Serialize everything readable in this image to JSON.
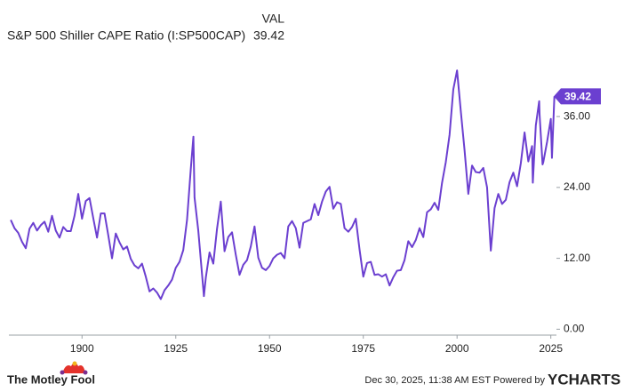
{
  "chart_data": {
    "type": "line",
    "header_label": "VAL",
    "series_name": "S&P 500 Shiller CAPE Ratio (I:SP500CAP)",
    "color": "#6b3fd0",
    "x": [
      1881,
      1882,
      1883,
      1884,
      1885,
      1886,
      1887,
      1888,
      1889,
      1890,
      1891,
      1892,
      1893,
      1894,
      1895,
      1896,
      1897,
      1898,
      1899,
      1900,
      1901,
      1902,
      1903,
      1904,
      1905,
      1906,
      1907,
      1908,
      1909,
      1910,
      1911,
      1912,
      1913,
      1914,
      1915,
      1916,
      1917,
      1918,
      1919,
      1920,
      1921,
      1922,
      1923,
      1924,
      1925,
      1926,
      1927,
      1928,
      1929,
      1929.7,
      1930,
      1931,
      1932,
      1932.5,
      1933,
      1934,
      1935,
      1936,
      1937,
      1938,
      1939,
      1940,
      1941,
      1942,
      1943,
      1944,
      1945,
      1946,
      1947,
      1948,
      1949,
      1950,
      1951,
      1952,
      1953,
      1954,
      1955,
      1956,
      1957,
      1958,
      1959,
      1960,
      1961,
      1962,
      1963,
      1964,
      1965,
      1966,
      1967,
      1968,
      1969,
      1970,
      1971,
      1972,
      1973,
      1974,
      1975,
      1976,
      1977,
      1978,
      1979,
      1980,
      1981,
      1982,
      1983,
      1984,
      1985,
      1986,
      1987,
      1988,
      1989,
      1990,
      1991,
      1992,
      1993,
      1994,
      1995,
      1996,
      1997,
      1998,
      1999,
      2000,
      2001,
      2002,
      2003,
      2004,
      2005,
      2006,
      2007,
      2008,
      2009,
      2010,
      2011,
      2012,
      2013,
      2014,
      2015,
      2016,
      2017,
      2018,
      2019,
      2020,
      2020.2,
      2021,
      2021.9,
      2022,
      2022.8,
      2023,
      2024,
      2025,
      2025.3,
      2025.95
    ],
    "values": [
      18.5,
      17.1,
      16.3,
      14.8,
      13.7,
      17.0,
      18.0,
      16.7,
      17.6,
      18.2,
      16.5,
      19.2,
      16.7,
      15.5,
      17.3,
      16.6,
      16.6,
      19.2,
      22.9,
      18.7,
      21.7,
      22.2,
      18.8,
      15.5,
      19.6,
      19.6,
      15.9,
      12.0,
      16.2,
      14.7,
      13.5,
      14.0,
      11.9,
      10.8,
      10.3,
      11.1,
      8.9,
      6.4,
      6.9,
      6.2,
      5.1,
      6.6,
      7.4,
      8.4,
      10.4,
      11.4,
      13.4,
      18.5,
      27.1,
      32.6,
      22.3,
      16.7,
      9.3,
      5.6,
      8.7,
      13.0,
      11.1,
      17.0,
      21.6,
      13.2,
      15.6,
      16.4,
      12.6,
      9.2,
      10.9,
      11.7,
      14.0,
      17.4,
      12.1,
      10.4,
      10.0,
      10.7,
      12.0,
      12.6,
      12.9,
      12.0,
      17.4,
      18.3,
      17.1,
      13.8,
      18.0,
      18.3,
      18.6,
      21.2,
      19.3,
      21.6,
      23.3,
      24.1,
      20.4,
      21.5,
      21.2,
      17.1,
      16.5,
      17.3,
      18.7,
      13.5,
      8.9,
      11.2,
      11.4,
      9.2,
      9.3,
      8.9,
      9.3,
      7.4,
      8.8,
      9.9,
      10.0,
      11.7,
      14.9,
      13.9,
      15.1,
      17.1,
      15.6,
      19.8,
      20.3,
      21.4,
      20.2,
      24.8,
      28.3,
      32.9,
      40.6,
      43.8,
      36.9,
      30.3,
      22.9,
      27.7,
      26.6,
      26.5,
      27.3,
      24.0,
      13.3,
      20.5,
      22.9,
      21.2,
      21.9,
      24.9,
      26.5,
      24.2,
      28.1,
      33.3,
      28.4,
      31.0,
      24.8,
      34.5,
      38.6,
      36.4,
      27.9,
      28.3,
      31.7,
      35.6,
      29.0,
      39.42
    ],
    "xlim": [
      1880.5,
      2026.5
    ],
    "ylim": [
      -1,
      47
    ],
    "xticks": [
      1900,
      1925,
      1950,
      1975,
      2000,
      2025
    ],
    "yticks": [
      {
        "value": 0,
        "label": "0.00"
      },
      {
        "value": 12,
        "label": "12.00"
      },
      {
        "value": 24,
        "label": "24.00"
      },
      {
        "value": 36,
        "label": "36.00"
      }
    ],
    "grid": false
  },
  "footer": {
    "brand": "The Motley Fool",
    "timestamp": "Dec 30, 2025, 11:38 AM EST Powered by",
    "source": "YCHARTS"
  }
}
